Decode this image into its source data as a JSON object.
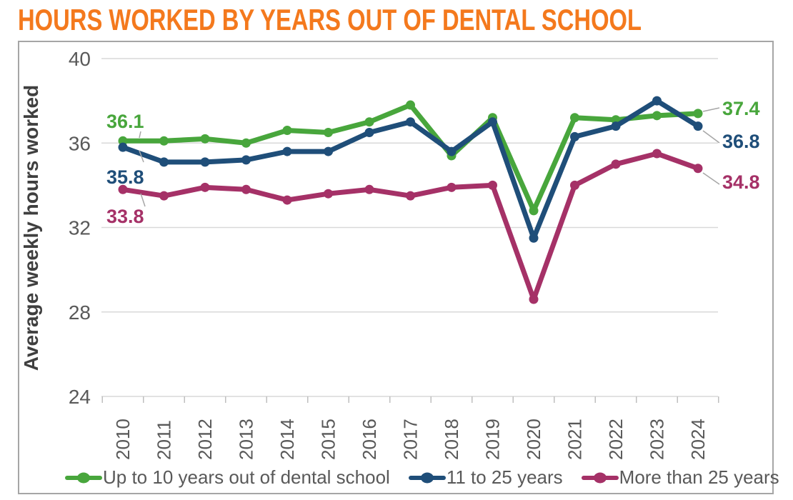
{
  "title": "HOURS WORKED BY YEARS OUT OF DENTAL SCHOOL",
  "chart_data": {
    "type": "line",
    "title": "HOURS WORKED BY YEARS OUT OF DENTAL SCHOOL",
    "ylabel": "Average weekly hours worked",
    "x": [
      "2010",
      "2011",
      "2012",
      "2013",
      "2014",
      "2015",
      "2016",
      "2017",
      "2018",
      "2019",
      "2020",
      "2021",
      "2022",
      "2023",
      "2024"
    ],
    "y_ticks": [
      24,
      28,
      32,
      36,
      40
    ],
    "ylim": [
      24,
      40
    ],
    "grid": "horizontal",
    "legend_position": "bottom",
    "series": [
      {
        "name": "Up to 10 years out of dental school",
        "color": "#48A63C",
        "values": [
          36.1,
          36.1,
          36.2,
          36.0,
          36.6,
          36.5,
          37.0,
          37.8,
          35.4,
          37.2,
          32.8,
          37.2,
          37.1,
          37.3,
          37.4
        ]
      },
      {
        "name": "11 to 25 years",
        "color": "#1F4E79",
        "values": [
          35.8,
          35.1,
          35.1,
          35.2,
          35.6,
          35.6,
          36.5,
          37.0,
          35.6,
          37.0,
          31.5,
          36.3,
          36.8,
          38.0,
          36.8
        ]
      },
      {
        "name": "More than 25 years",
        "color": "#A53167",
        "values": [
          33.8,
          33.5,
          33.9,
          33.8,
          33.3,
          33.6,
          33.8,
          33.5,
          33.9,
          34.0,
          28.6,
          34.0,
          35.0,
          35.5,
          34.8
        ]
      }
    ],
    "annotations": [
      {
        "series": 0,
        "position": "start",
        "text": "36.1"
      },
      {
        "series": 1,
        "position": "start",
        "text": "35.8"
      },
      {
        "series": 2,
        "position": "start",
        "text": "33.8"
      },
      {
        "series": 0,
        "position": "end",
        "text": "37.4"
      },
      {
        "series": 1,
        "position": "end",
        "text": "36.8"
      },
      {
        "series": 2,
        "position": "end",
        "text": "34.8"
      }
    ],
    "colors": {
      "title": "#F4791D",
      "gridline": "#D9D9D9",
      "axis_tick": "#BFBFBF",
      "axis_text": "#595959",
      "frame_border": "#A6A6A6",
      "leader_line": "#A6A6A6"
    }
  }
}
